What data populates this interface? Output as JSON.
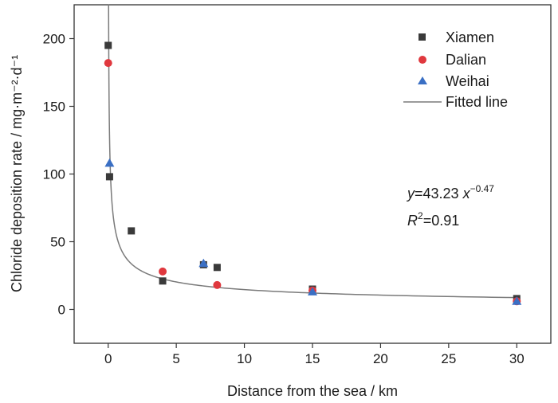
{
  "chart_data": {
    "type": "scatter",
    "xlabel": "Distance from the sea / km",
    "ylabel": "Chloride deposition rate / mg·m⁻²·d⁻¹",
    "xlim": [
      -2.5,
      32.5
    ],
    "ylim": [
      -25,
      225
    ],
    "x_ticks": [
      0,
      5,
      10,
      15,
      20,
      25,
      30
    ],
    "y_ticks": [
      0,
      50,
      100,
      150,
      200
    ],
    "grid": false,
    "legend_position": "top-right",
    "series": [
      {
        "name": "Xiamen",
        "marker": "square",
        "color": "#3a3a3a",
        "points": [
          [
            0,
            195
          ],
          [
            0.1,
            98
          ],
          [
            1.7,
            58
          ],
          [
            4,
            21
          ],
          [
            7,
            33
          ],
          [
            8,
            31
          ],
          [
            15,
            15
          ],
          [
            30,
            8
          ]
        ]
      },
      {
        "name": "Dalian",
        "marker": "circle",
        "color": "#e0383e",
        "points": [
          [
            0,
            182
          ],
          [
            4,
            28
          ],
          [
            8,
            18
          ],
          [
            15,
            14
          ],
          [
            30,
            6
          ]
        ]
      },
      {
        "name": "Weihai",
        "marker": "triangle",
        "color": "#3a6fc4",
        "points": [
          [
            0.1,
            108
          ],
          [
            7,
            34
          ],
          [
            15,
            13
          ],
          [
            30,
            6
          ]
        ]
      }
    ],
    "fit": {
      "name": "Fitted line",
      "color": "#7a7a7a",
      "a": 43.23,
      "b": -0.47,
      "x_range": [
        0.007,
        30
      ]
    },
    "annotations": {
      "eq_y": "y",
      "eq_mid": "=43.23 ",
      "eq_x": "x",
      "eq_exp": "−0.47",
      "r2_r": "R",
      "r2_sup": "2",
      "r2_val": "=0.91"
    }
  }
}
